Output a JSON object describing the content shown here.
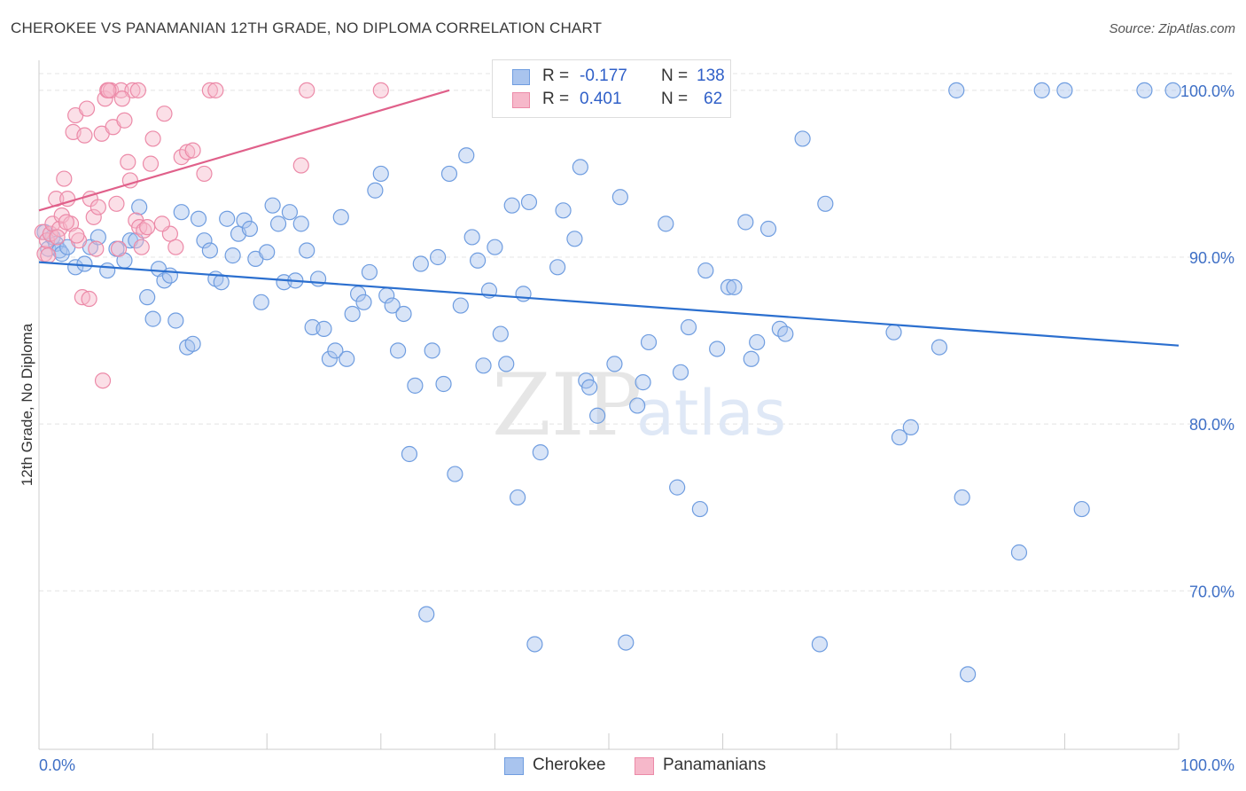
{
  "title": "CHEROKEE VS PANAMANIAN 12TH GRADE, NO DIPLOMA CORRELATION CHART",
  "source": "Source: ZipAtlas.com",
  "watermark": {
    "zip": "ZIP",
    "atlas": "atlas"
  },
  "legend_box": {
    "rows": [
      {
        "r_label": "R =",
        "r_value": "-0.177",
        "n_label": "N =",
        "n_value": "138"
      },
      {
        "r_label": "R =",
        "r_value": "0.401",
        "n_label": "N =",
        "n_value": "62"
      }
    ]
  },
  "colors": {
    "cherokee_fill": "#a9c4ee",
    "cherokee_stroke": "#6f9de0",
    "cherokee_line": "#2b6fcf",
    "panamanian_fill": "#f6b8ca",
    "panamanian_stroke": "#ec8aa8",
    "panamanian_line": "#e0608a",
    "tick_label": "#3f70c6",
    "grid": "#e4e4e4"
  },
  "chart_data": {
    "type": "scatter",
    "title": "CHEROKEE VS PANAMANIAN 12TH GRADE, NO DIPLOMA CORRELATION CHART",
    "xlabel": "",
    "ylabel": "12th Grade, No Diploma",
    "xlim": [
      0,
      100
    ],
    "ylim": [
      60.5,
      101.8
    ],
    "x_tick_labels": [
      "0.0%",
      "100.0%"
    ],
    "y_ticks": [
      100,
      90,
      80,
      70
    ],
    "y_tick_labels": [
      "100.0%",
      "90.0%",
      "80.0%",
      "70.0%"
    ],
    "grid": true,
    "legend_placement": "bottom-center",
    "series": [
      {
        "name": "Cherokee",
        "r": -0.177,
        "n": 138,
        "trend": {
          "x": [
            0,
            100
          ],
          "y": [
            89.7,
            84.7
          ]
        },
        "points": [
          [
            0.5,
            91.5
          ],
          [
            0.8,
            90.5
          ],
          [
            1.2,
            91.2
          ],
          [
            1.5,
            90.8
          ],
          [
            1.8,
            90.4
          ],
          [
            2.0,
            90.2
          ],
          [
            2.5,
            90.6
          ],
          [
            3.2,
            89.4
          ],
          [
            4.0,
            89.6
          ],
          [
            4.5,
            90.6
          ],
          [
            5.2,
            91.2
          ],
          [
            6.0,
            89.2
          ],
          [
            6.8,
            90.5
          ],
          [
            7.5,
            89.8
          ],
          [
            8.0,
            91.0
          ],
          [
            8.5,
            91.0
          ],
          [
            8.8,
            93.0
          ],
          [
            9.5,
            87.6
          ],
          [
            10.0,
            86.3
          ],
          [
            10.5,
            89.3
          ],
          [
            11.0,
            88.6
          ],
          [
            11.5,
            88.9
          ],
          [
            12.0,
            86.2
          ],
          [
            12.5,
            92.7
          ],
          [
            13.0,
            84.6
          ],
          [
            13.5,
            84.8
          ],
          [
            14.0,
            92.3
          ],
          [
            14.5,
            91.0
          ],
          [
            15.0,
            90.4
          ],
          [
            15.5,
            88.7
          ],
          [
            16.0,
            88.5
          ],
          [
            16.5,
            92.3
          ],
          [
            17.0,
            90.1
          ],
          [
            17.5,
            91.4
          ],
          [
            18.0,
            92.2
          ],
          [
            18.5,
            91.7
          ],
          [
            19.0,
            89.9
          ],
          [
            19.5,
            87.3
          ],
          [
            20.0,
            90.3
          ],
          [
            20.5,
            93.1
          ],
          [
            21.0,
            92.0
          ],
          [
            21.5,
            88.5
          ],
          [
            22.0,
            92.7
          ],
          [
            22.5,
            88.6
          ],
          [
            23.0,
            92.0
          ],
          [
            23.5,
            90.4
          ],
          [
            24.0,
            85.8
          ],
          [
            24.5,
            88.7
          ],
          [
            25.0,
            85.7
          ],
          [
            25.5,
            83.9
          ],
          [
            26.0,
            84.4
          ],
          [
            26.5,
            92.4
          ],
          [
            27.0,
            83.9
          ],
          [
            27.5,
            86.6
          ],
          [
            28.0,
            87.8
          ],
          [
            28.5,
            87.3
          ],
          [
            29.0,
            89.1
          ],
          [
            29.5,
            94.0
          ],
          [
            30.0,
            95.0
          ],
          [
            30.5,
            87.7
          ],
          [
            31.0,
            87.1
          ],
          [
            31.5,
            84.4
          ],
          [
            32.0,
            86.6
          ],
          [
            32.5,
            78.2
          ],
          [
            33.0,
            82.3
          ],
          [
            33.5,
            89.6
          ],
          [
            34.0,
            68.6
          ],
          [
            34.5,
            84.4
          ],
          [
            35.0,
            90.0
          ],
          [
            35.5,
            82.4
          ],
          [
            36.0,
            95.0
          ],
          [
            36.5,
            77.0
          ],
          [
            37.0,
            87.1
          ],
          [
            37.5,
            96.1
          ],
          [
            38.0,
            91.2
          ],
          [
            38.5,
            89.8
          ],
          [
            39.0,
            83.5
          ],
          [
            39.5,
            88.0
          ],
          [
            40.0,
            90.6
          ],
          [
            40.5,
            85.4
          ],
          [
            41.0,
            83.6
          ],
          [
            41.5,
            93.1
          ],
          [
            42.0,
            75.6
          ],
          [
            42.5,
            87.8
          ],
          [
            43.0,
            93.3
          ],
          [
            43.5,
            66.8
          ],
          [
            44.0,
            78.3
          ],
          [
            45.0,
            100.0
          ],
          [
            45.5,
            89.4
          ],
          [
            46.0,
            92.8
          ],
          [
            47.0,
            91.1
          ],
          [
            47.5,
            95.4
          ],
          [
            48.0,
            82.6
          ],
          [
            48.3,
            82.2
          ],
          [
            49.0,
            80.5
          ],
          [
            49.5,
            100.0
          ],
          [
            50.5,
            83.6
          ],
          [
            51.0,
            93.6
          ],
          [
            51.5,
            66.9
          ],
          [
            52.5,
            81.1
          ],
          [
            53.0,
            82.5
          ],
          [
            53.5,
            84.9
          ],
          [
            54.0,
            100.0
          ],
          [
            55.0,
            92.0
          ],
          [
            56.0,
            76.2
          ],
          [
            56.3,
            83.1
          ],
          [
            57.0,
            85.8
          ],
          [
            58.0,
            74.9
          ],
          [
            58.5,
            89.2
          ],
          [
            59.5,
            84.5
          ],
          [
            60.5,
            88.2
          ],
          [
            61.0,
            88.2
          ],
          [
            62.0,
            92.1
          ],
          [
            62.5,
            83.9
          ],
          [
            63.0,
            84.9
          ],
          [
            64.0,
            91.7
          ],
          [
            65.0,
            85.7
          ],
          [
            65.5,
            85.4
          ],
          [
            67.0,
            97.1
          ],
          [
            68.5,
            66.8
          ],
          [
            69.0,
            93.2
          ],
          [
            75.0,
            85.5
          ],
          [
            75.5,
            79.2
          ],
          [
            76.5,
            79.8
          ],
          [
            79.0,
            84.6
          ],
          [
            80.5,
            100.0
          ],
          [
            81.0,
            75.6
          ],
          [
            81.5,
            65.0
          ],
          [
            86.0,
            72.3
          ],
          [
            88.0,
            100.0
          ],
          [
            90.0,
            100.0
          ],
          [
            91.5,
            74.9
          ],
          [
            97.0,
            100.0
          ],
          [
            99.5,
            100.0
          ]
        ]
      },
      {
        "name": "Panamanians",
        "r": 0.401,
        "n": 62,
        "trend": {
          "x": [
            0,
            36
          ],
          "y": [
            92.8,
            100.0
          ]
        },
        "points": [
          [
            0.3,
            91.5
          ],
          [
            0.5,
            90.2
          ],
          [
            0.7,
            91.0
          ],
          [
            1.0,
            91.4
          ],
          [
            1.2,
            92.0
          ],
          [
            1.5,
            93.5
          ],
          [
            1.8,
            91.7
          ],
          [
            2.0,
            92.5
          ],
          [
            2.2,
            94.7
          ],
          [
            2.5,
            93.5
          ],
          [
            2.8,
            92.0
          ],
          [
            3.0,
            97.5
          ],
          [
            3.2,
            98.5
          ],
          [
            3.5,
            91.0
          ],
          [
            3.8,
            87.6
          ],
          [
            4.0,
            97.3
          ],
          [
            4.2,
            98.9
          ],
          [
            4.5,
            93.5
          ],
          [
            4.8,
            92.4
          ],
          [
            5.0,
            90.5
          ],
          [
            5.2,
            93.0
          ],
          [
            5.5,
            97.4
          ],
          [
            5.8,
            99.5
          ],
          [
            6.0,
            100.0
          ],
          [
            6.3,
            100.0
          ],
          [
            6.5,
            97.8
          ],
          [
            6.8,
            93.2
          ],
          [
            7.0,
            90.5
          ],
          [
            7.2,
            100.0
          ],
          [
            7.5,
            98.2
          ],
          [
            7.8,
            95.7
          ],
          [
            8.0,
            94.6
          ],
          [
            8.2,
            100.0
          ],
          [
            8.5,
            92.2
          ],
          [
            8.8,
            91.8
          ],
          [
            9.0,
            90.6
          ],
          [
            9.2,
            91.6
          ],
          [
            9.5,
            91.8
          ],
          [
            9.8,
            95.6
          ],
          [
            10.0,
            97.1
          ],
          [
            11.0,
            98.6
          ],
          [
            11.5,
            91.4
          ],
          [
            12.0,
            90.6
          ],
          [
            12.5,
            96.0
          ],
          [
            13.0,
            96.3
          ],
          [
            13.5,
            96.4
          ],
          [
            14.5,
            95.0
          ],
          [
            15.0,
            100.0
          ],
          [
            15.5,
            100.0
          ],
          [
            23.0,
            95.5
          ],
          [
            23.5,
            100.0
          ],
          [
            30.0,
            100.0
          ],
          [
            0.8,
            90.1
          ],
          [
            1.6,
            91.2
          ],
          [
            2.4,
            92.1
          ],
          [
            3.3,
            91.3
          ],
          [
            4.4,
            87.5
          ],
          [
            5.6,
            82.6
          ],
          [
            6.1,
            100.0
          ],
          [
            7.3,
            99.5
          ],
          [
            8.7,
            100.0
          ],
          [
            10.8,
            92.0
          ]
        ]
      }
    ]
  }
}
